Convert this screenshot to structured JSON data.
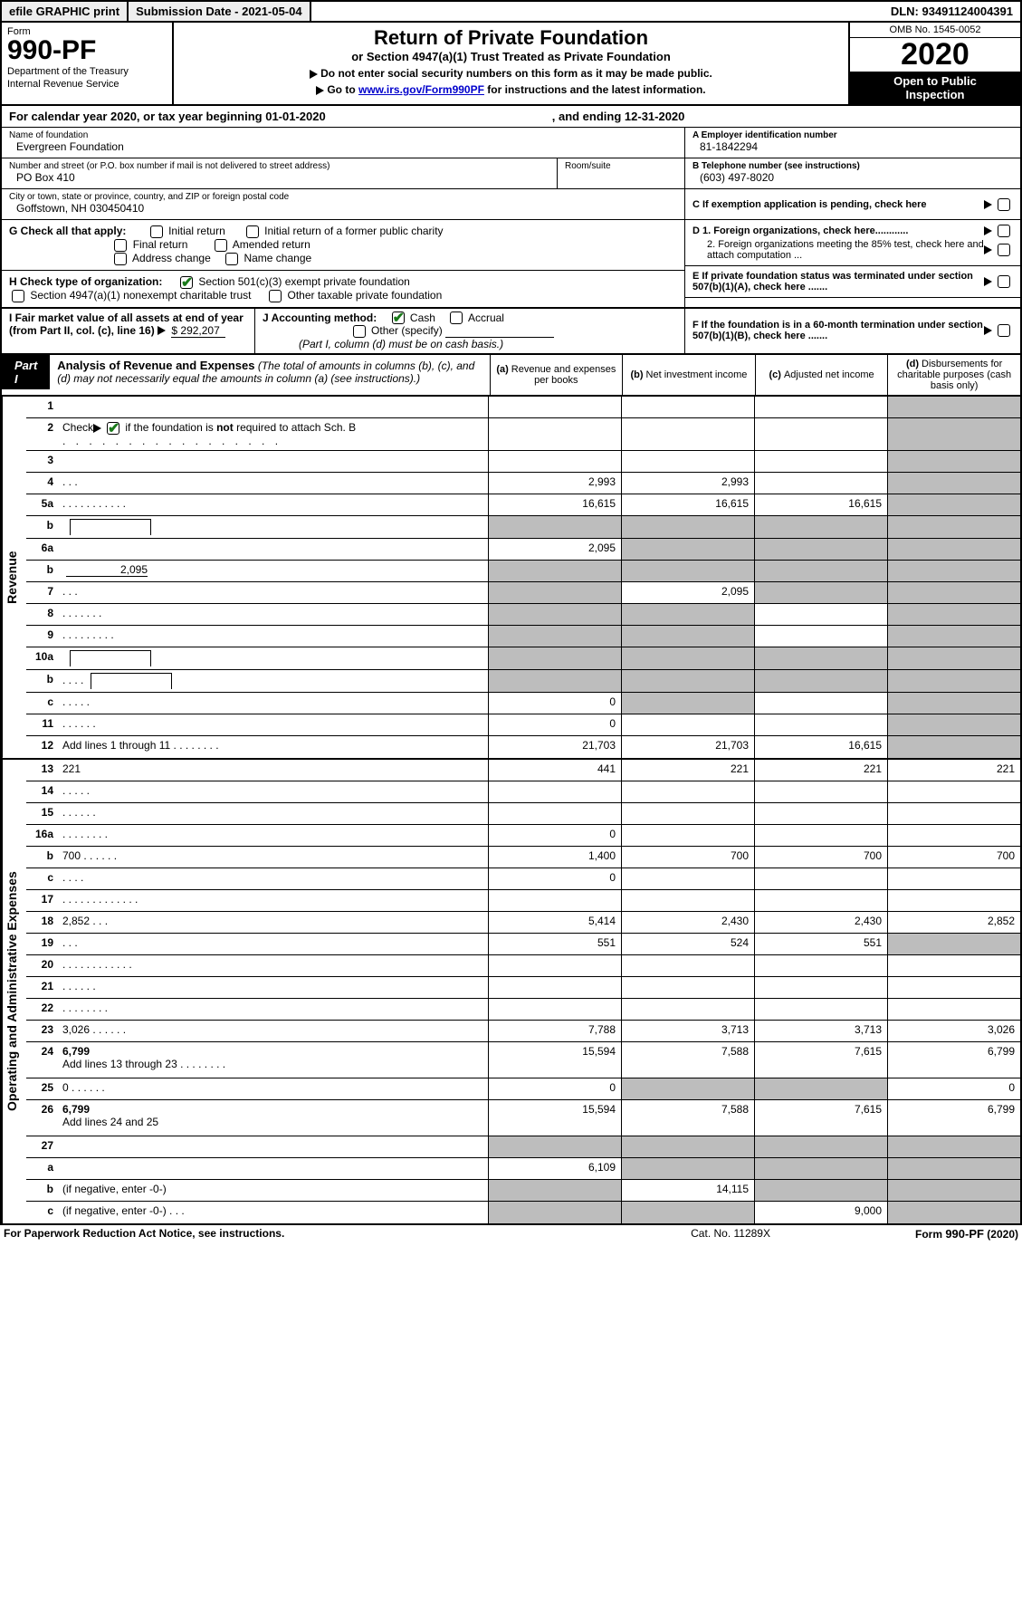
{
  "top": {
    "efile": "efile GRAPHIC print",
    "subm": "Submission Date - 2021-05-04",
    "dln": "DLN: 93491124004391"
  },
  "header": {
    "form_label": "Form",
    "form_no": "990-PF",
    "dept1": "Department of the Treasury",
    "dept2": "Internal Revenue Service",
    "title": "Return of Private Foundation",
    "subtitle": "or Section 4947(a)(1) Trust Treated as Private Foundation",
    "note1": "Do not enter social security numbers on this form as it may be made public.",
    "note2_pre": "Go to ",
    "note2_link": "www.irs.gov/Form990PF",
    "note2_post": " for instructions and the latest information.",
    "omb": "OMB No. 1545-0052",
    "year": "2020",
    "open1": "Open to Public",
    "open2": "Inspection"
  },
  "cal": {
    "begin": "For calendar year 2020, or tax year beginning 01-01-2020",
    "end": ", and ending 12-31-2020"
  },
  "info": {
    "name_lbl": "Name of foundation",
    "name": "Evergreen Foundation",
    "addr_lbl": "Number and street (or P.O. box number if mail is not delivered to street address)",
    "addr": "PO Box 410",
    "room_lbl": "Room/suite",
    "city_lbl": "City or town, state or province, country, and ZIP or foreign postal code",
    "city": "Goffstown, NH  030450410",
    "ein_lbl": "A Employer identification number",
    "ein": "81-1842294",
    "tel_lbl": "B Telephone number (see instructions)",
    "tel": "(603) 497-8020",
    "c_lbl": "C If exemption application is pending, check here",
    "d1": "D 1. Foreign organizations, check here............",
    "d2": "2. Foreign organizations meeting the 85% test, check here and attach computation ...",
    "e_lbl": "E  If private foundation status was terminated under section 507(b)(1)(A), check here .......",
    "f_lbl": "F  If the foundation is in a 60-month termination under section 507(b)(1)(B), check here .......",
    "g_lbl": "G Check all that apply:",
    "g_opts": [
      "Initial return",
      "Initial return of a former public charity",
      "Final return",
      "Amended return",
      "Address change",
      "Name change"
    ],
    "h_lbl": "H Check type of organization:",
    "h1": "Section 501(c)(3) exempt private foundation",
    "h2": "Section 4947(a)(1) nonexempt charitable trust",
    "h3": "Other taxable private foundation",
    "i_lbl": "I Fair market value of all assets at end of year (from Part II, col. (c), line 16)",
    "i_val": "$  292,207",
    "j_lbl": "J Accounting method:",
    "j_cash": "Cash",
    "j_acc": "Accrual",
    "j_other": "Other (specify)",
    "j_note": "(Part I, column (d) must be on cash basis.)"
  },
  "part": {
    "badge": "Part I",
    "title": "Analysis of Revenue and Expenses",
    "desc": " (The total of amounts in columns (b), (c), and (d) may not necessarily equal the amounts in column (a) (see instructions).)",
    "cols": {
      "a": "Revenue and expenses per books",
      "b": "Net investment income",
      "c": "Adjusted net income",
      "d": "Disbursements for charitable purposes (cash basis only)"
    }
  },
  "vlabels": {
    "rev": "Revenue",
    "exp": "Operating and Administrative Expenses"
  },
  "rows": {
    "r1": {
      "n": "1",
      "d": "",
      "a": "",
      "b": "",
      "c": "",
      "sd": true
    },
    "r2": {
      "n": "2",
      "d_pre": "Check",
      "d_post": " if the foundation is ",
      "d_bold": "not",
      "d_end": " required to attach Sch. B",
      "check": true,
      "dots": true,
      "a": "",
      "b": "",
      "c": "",
      "d": "",
      "sd": true
    },
    "r3": {
      "n": "3",
      "d": "",
      "a": "",
      "b": "",
      "c": "",
      "sd": true
    },
    "r4": {
      "n": "4",
      "d": "",
      "dots": "   .    .    .",
      "a": "2,993",
      "b": "2,993",
      "c": "",
      "sd": true
    },
    "r5a": {
      "n": "5a",
      "d": "",
      "dots": "   .    .    .    .    .    .    .    .    .    .    .",
      "a": "16,615",
      "b": "16,615",
      "c": "16,615",
      "sd": true
    },
    "r5b": {
      "n": "b",
      "d": "",
      "box": "",
      "a": "",
      "b": "",
      "c": "",
      "sa": true,
      "sb": true,
      "sc": true,
      "sd": true
    },
    "r6a": {
      "n": "6a",
      "d": "",
      "a": "2,095",
      "b": "",
      "c": "",
      "sb": true,
      "sc": true,
      "sd": true
    },
    "r6b": {
      "n": "b",
      "d": "",
      "blank": "2,095",
      "a": "",
      "b": "",
      "c": "",
      "sa": true,
      "sb": true,
      "sc": true,
      "sd": true
    },
    "r7": {
      "n": "7",
      "d": "",
      "dots": "   .    .    .",
      "a": "",
      "b": "2,095",
      "c": "",
      "sa": true,
      "sc": true,
      "sd": true
    },
    "r8": {
      "n": "8",
      "d": "",
      "dots": "   .    .    .    .    .    .    .",
      "a": "",
      "b": "",
      "c": "",
      "sa": true,
      "sb": true,
      "sd": true
    },
    "r9": {
      "n": "9",
      "d": "",
      "dots": "   .    .    .    .    .    .    .    .    .",
      "a": "",
      "b": "",
      "c": "",
      "sa": true,
      "sb": true,
      "sd": true
    },
    "r10a": {
      "n": "10a",
      "d": "",
      "box": "",
      "a": "",
      "b": "",
      "c": "",
      "sa": true,
      "sb": true,
      "sc": true,
      "sd": true
    },
    "r10b": {
      "n": "b",
      "d": "",
      "dots": "    .    .    .    .",
      "box": "",
      "a": "",
      "b": "",
      "c": "",
      "sa": true,
      "sb": true,
      "sc": true,
      "sd": true
    },
    "r10c": {
      "n": "c",
      "d": "",
      "dots": "   .    .    .    .    .",
      "a": "0",
      "b": "",
      "c": "",
      "sb": true,
      "sd": true
    },
    "r11": {
      "n": "11",
      "d": "",
      "dots": "   .    .    .    .    .    .",
      "a": "0",
      "b": "",
      "c": "",
      "sd": true
    },
    "r12": {
      "n": "12",
      "d": "",
      "d2": "Add lines 1 through 11",
      "dots": "   .    .    .    .    .    .    .    .",
      "a": "21,703",
      "b": "21,703",
      "c": "16,615",
      "sd": true,
      "bold": true
    },
    "r13": {
      "n": "13",
      "d": "221",
      "a": "441",
      "b": "221",
      "c": "221"
    },
    "r14": {
      "n": "14",
      "d": "",
      "dots": "   .    .    .    .    .",
      "a": "",
      "b": "",
      "c": ""
    },
    "r15": {
      "n": "15",
      "d": "",
      "dots": "   .    .    .    .    .    .",
      "a": "",
      "b": "",
      "c": ""
    },
    "r16a": {
      "n": "16a",
      "d": "",
      "dots": "   .    .    .    .    .    .    .    .",
      "a": "0",
      "b": "",
      "c": ""
    },
    "r16b": {
      "n": "b",
      "d": "700",
      "dots": "   .    .    .    .    .    .",
      "a": "1,400",
      "b": "700",
      "c": "700"
    },
    "r16c": {
      "n": "c",
      "d": "",
      "dots": "    .    .    .    .",
      "a": "0",
      "b": "",
      "c": ""
    },
    "r17": {
      "n": "17",
      "d": "",
      "dots": "   .    .    .    .    .    .    .    .    .    .    .    .    .",
      "a": "",
      "b": "",
      "c": ""
    },
    "r18": {
      "n": "18",
      "d": "2,852",
      "dots": "    .    .    .",
      "a": "5,414",
      "b": "2,430",
      "c": "2,430"
    },
    "r19": {
      "n": "19",
      "d": "",
      "dots": "    .    .    .",
      "a": "551",
      "b": "524",
      "c": "551",
      "sd": true
    },
    "r20": {
      "n": "20",
      "d": "",
      "dots": "   .    .    .    .    .    .    .    .    .    .    .    .",
      "a": "",
      "b": "",
      "c": ""
    },
    "r21": {
      "n": "21",
      "d": "",
      "dots": "   .    .    .    .    .    .",
      "a": "",
      "b": "",
      "c": ""
    },
    "r22": {
      "n": "22",
      "d": "",
      "dots": "   .    .    .    .    .    .    .    .",
      "a": "",
      "b": "",
      "c": ""
    },
    "r23": {
      "n": "23",
      "d": "3,026",
      "dots": "   .    .    .    .    .    .",
      "a": "7,788",
      "b": "3,713",
      "c": "3,713"
    },
    "r24": {
      "n": "24",
      "d": "6,799",
      "d2": "Add lines 13 through 23",
      "dots": "   .    .    .    .    .    .    .    .",
      "a": "15,594",
      "b": "7,588",
      "c": "7,615",
      "bold": true,
      "twoline": true
    },
    "r25": {
      "n": "25",
      "d": "0",
      "dots": "    .    .    .    .    .    .",
      "a": "0",
      "b": "",
      "c": "",
      "sb": true,
      "sc": true
    },
    "r26": {
      "n": "26",
      "d": "6,799",
      "d2": "Add lines 24 and 25",
      "a": "15,594",
      "b": "7,588",
      "c": "7,615",
      "bold": true,
      "twoline": true
    },
    "r27": {
      "n": "27",
      "d": "",
      "a": "",
      "b": "",
      "c": "",
      "sa": true,
      "sb": true,
      "sc": true,
      "sd": true
    },
    "r27a": {
      "n": "a",
      "d": "",
      "a": "6,109",
      "b": "",
      "c": "",
      "sb": true,
      "sc": true,
      "sd": true,
      "bold": true
    },
    "r27b": {
      "n": "b",
      "d": "",
      "d2": "(if negative, enter -0-)",
      "a": "",
      "b": "14,115",
      "c": "",
      "sa": true,
      "sc": true,
      "sd": true,
      "bold": true
    },
    "r27c": {
      "n": "c",
      "d": "",
      "d2": "(if negative, enter -0-)",
      "dots": "    .    .    .",
      "a": "",
      "b": "",
      "c": "9,000",
      "sa": true,
      "sb": true,
      "sd": true,
      "bold": true
    }
  },
  "footer": {
    "left": "For Paperwork Reduction Act Notice, see instructions.",
    "mid": "Cat. No. 11289X",
    "right": "Form 990-PF (2020)"
  }
}
